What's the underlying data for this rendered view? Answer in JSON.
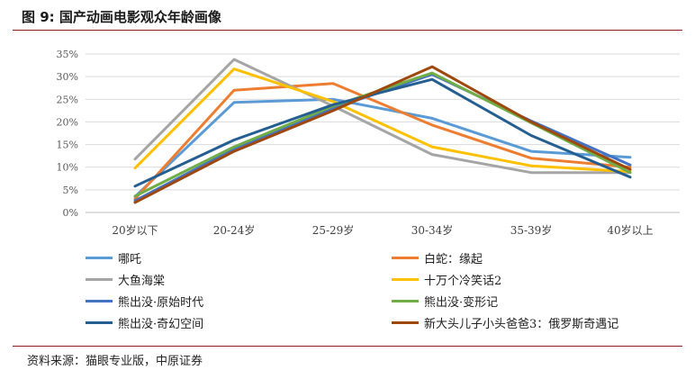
{
  "figure_title": "图 9:  国产动画电影观众年龄画像",
  "source": "资料来源：猫眼专业版，中原证券",
  "chart_data": {
    "type": "line",
    "title": "",
    "xlabel": "",
    "ylabel": "",
    "categories": [
      "20岁以下",
      "20-24岁",
      "25-29岁",
      "30-34岁",
      "35-39岁",
      "40岁以上"
    ],
    "ylim": [
      0,
      35
    ],
    "yticks": [
      0,
      5,
      10,
      15,
      20,
      25,
      30,
      35
    ],
    "ytick_labels": [
      "0%",
      "5%",
      "10%",
      "15%",
      "20%",
      "25%",
      "30%",
      "35%"
    ],
    "grid": true,
    "legend_position": "bottom",
    "series": [
      {
        "name": "哪吒",
        "color": "#5B9BD5",
        "values": [
          3.5,
          24.3,
          25.0,
          20.8,
          13.5,
          12.2
        ]
      },
      {
        "name": "白蛇：缘起",
        "color": "#ED7D31",
        "values": [
          3.0,
          27.0,
          28.5,
          19.3,
          12.0,
          10.0
        ]
      },
      {
        "name": "大鱼海棠",
        "color": "#A5A5A5",
        "values": [
          11.8,
          33.8,
          23.5,
          12.8,
          8.8,
          8.8
        ]
      },
      {
        "name": "十万个冷笑话2",
        "color": "#FFC000",
        "values": [
          9.8,
          31.7,
          24.5,
          14.5,
          10.3,
          9.0
        ]
      },
      {
        "name": "熊出没·原始时代",
        "color": "#4472C4",
        "values": [
          2.6,
          14.0,
          23.0,
          30.5,
          20.2,
          10.5
        ]
      },
      {
        "name": "熊出没·变形记",
        "color": "#70AD47",
        "values": [
          3.6,
          14.5,
          23.5,
          30.8,
          19.8,
          8.8
        ]
      },
      {
        "name": "熊出没·奇幻空间",
        "color": "#255E91",
        "values": [
          5.8,
          16.0,
          23.8,
          29.4,
          17.0,
          7.8
        ]
      },
      {
        "name": "新大头儿子小头爸爸3：俄罗斯奇遇记",
        "color": "#9E480E",
        "values": [
          2.2,
          13.5,
          22.5,
          32.2,
          20.0,
          9.5
        ]
      }
    ]
  }
}
